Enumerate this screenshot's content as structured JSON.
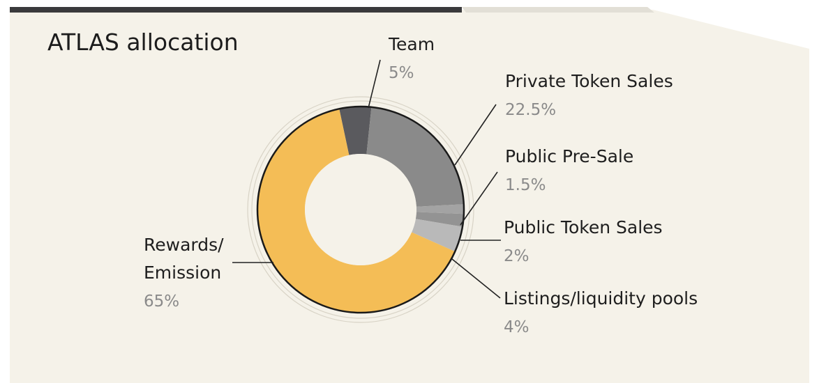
{
  "colors": {
    "panel": "#f5f2e9",
    "top_bar_dark": "#3a3a3c",
    "top_bar_light": "#e2dfd6",
    "ring_outline": "#1a1a1a",
    "halo": "#d8d3c6",
    "leader": "#222222"
  },
  "chart_data": {
    "type": "pie",
    "title": "ATLAS allocation",
    "donut": true,
    "slices": [
      {
        "label": "Team",
        "value": 5,
        "value_label": "5%",
        "color": "#5a5a5e"
      },
      {
        "label": "Private Token Sales",
        "value": 22.5,
        "value_label": "22.5%",
        "color": "#8a8a8a"
      },
      {
        "label": "Public Pre-Sale",
        "value": 1.5,
        "value_label": "1.5%",
        "color": "#a3a3a3"
      },
      {
        "label": "Public Token Sales",
        "value": 2,
        "value_label": "2%",
        "color": "#939393"
      },
      {
        "label": "Listings/liquidity pools",
        "value": 4,
        "value_label": "4%",
        "color": "#b9b9b9"
      },
      {
        "label": "Rewards/\nEmission",
        "value": 65,
        "value_label": "65%",
        "color": "#f4bd56"
      }
    ]
  }
}
